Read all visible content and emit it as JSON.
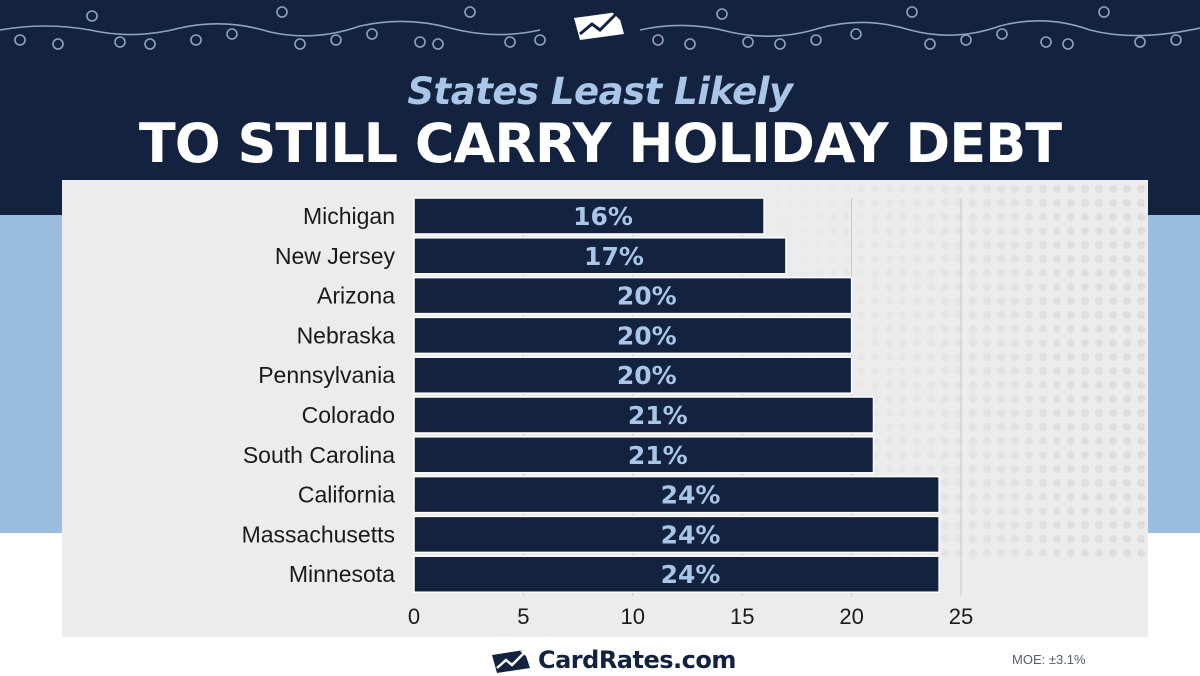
{
  "header": {
    "subtitle": "States Least Likely",
    "title": "TO STILL CARRY HOLIDAY DEBT"
  },
  "chart_data": {
    "type": "bar",
    "orientation": "horizontal",
    "categories": [
      "Michigan",
      "New Jersey",
      "Arizona",
      "Nebraska",
      "Pennsylvania",
      "Colorado",
      "South Carolina",
      "California",
      "Massachusetts",
      "Minnesota"
    ],
    "values": [
      16,
      17,
      20,
      20,
      20,
      21,
      21,
      24,
      24,
      24
    ],
    "data_labels": [
      "16%",
      "17%",
      "20%",
      "20%",
      "20%",
      "21%",
      "21%",
      "24%",
      "24%",
      "24%"
    ],
    "x_ticks": [
      0,
      5,
      10,
      15,
      20,
      25
    ],
    "xlim": [
      0,
      25
    ],
    "title": "",
    "xlabel": "",
    "ylabel": "",
    "grid": true
  },
  "footer": {
    "brand": "CardRates.com",
    "moe": "MOE: ±3.1%"
  },
  "colors": {
    "navy": "#12223f",
    "light_blue": "#9bbde0",
    "label_blue": "#a9c6e8",
    "panel_gray": "#ececec"
  }
}
